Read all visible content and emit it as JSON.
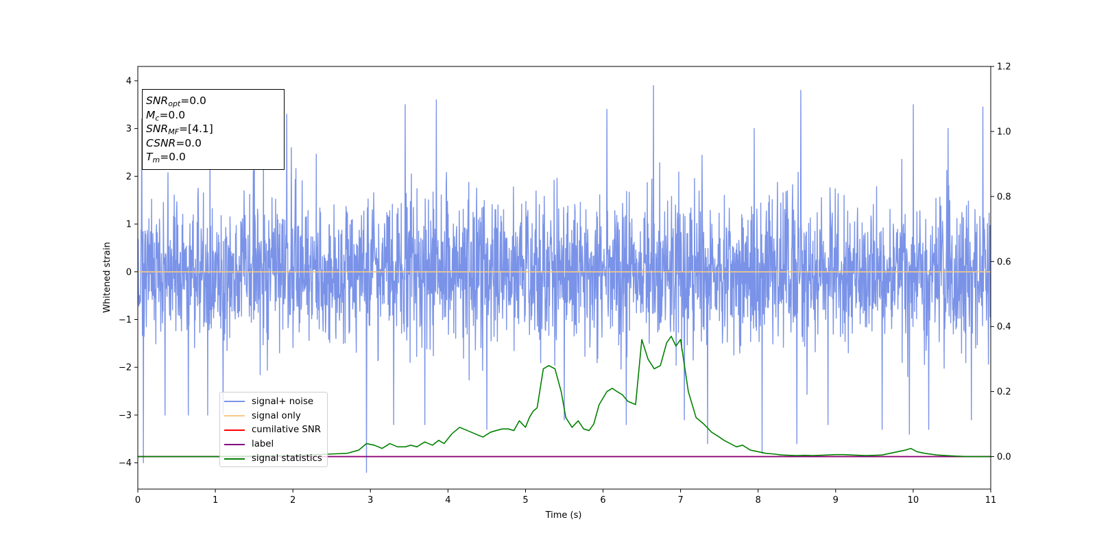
{
  "chart_data": {
    "type": "line",
    "xlabel": "Time (s)",
    "ylabel": "Whitened strain",
    "xlim": [
      0,
      11
    ],
    "ylim": [
      -4.55,
      4.3
    ],
    "ylim_right": [
      -0.1,
      1.2
    ],
    "x_ticks": [
      "0",
      "1",
      "2",
      "3",
      "4",
      "5",
      "6",
      "7",
      "8",
      "9",
      "10",
      "11"
    ],
    "x_tick_values": [
      0,
      1,
      2,
      3,
      4,
      5,
      6,
      7,
      8,
      9,
      10,
      11
    ],
    "y_ticks": [
      "4",
      "3",
      "2",
      "1",
      "0",
      "−1",
      "−2",
      "−3",
      "−4"
    ],
    "y_tick_values": [
      4,
      3,
      2,
      1,
      0,
      -1,
      -2,
      -3,
      -4
    ],
    "y_right_ticks": [
      "1.2",
      "1.0",
      "0.8",
      "0.6",
      "0.4",
      "0.2",
      "0.0"
    ],
    "y_right_tick_values": [
      1.2,
      1.0,
      0.8,
      0.6,
      0.4,
      0.2,
      0.0
    ],
    "legend_position": "lower-left",
    "grid": false,
    "series": [
      {
        "name": "signal+ noise",
        "axis": "left",
        "color": "#7a93e8",
        "style": "noise",
        "typical_range": [
          -2.1,
          2.1
        ],
        "peaks_high": [
          [
            0.05,
            3.2
          ],
          [
            1.5,
            3.8
          ],
          [
            1.92,
            3.3
          ],
          [
            3.45,
            3.5
          ],
          [
            3.85,
            3.6
          ],
          [
            5.5,
            3.2
          ],
          [
            6.05,
            3.4
          ],
          [
            6.65,
            3.9
          ],
          [
            6.3,
            3.0
          ],
          [
            7.95,
            3.0
          ],
          [
            8.55,
            3.8
          ],
          [
            8.9,
            3.2
          ],
          [
            9.6,
            3.0
          ],
          [
            10.0,
            3.5
          ],
          [
            10.45,
            3.0
          ],
          [
            10.9,
            3.45
          ]
        ],
        "peaks_low": [
          [
            0.07,
            -4.0
          ],
          [
            0.35,
            -3.0
          ],
          [
            0.65,
            -3.0
          ],
          [
            0.9,
            -3.0
          ],
          [
            1.1,
            -3.0
          ],
          [
            2.95,
            -4.2
          ],
          [
            3.3,
            -3.2
          ],
          [
            3.7,
            -3.2
          ],
          [
            4.5,
            -3.3
          ],
          [
            5.5,
            -3.1
          ],
          [
            6.3,
            -3.2
          ],
          [
            7.05,
            -3.1
          ],
          [
            7.35,
            -3.6
          ],
          [
            8.05,
            -3.8
          ],
          [
            8.5,
            -3.6
          ],
          [
            8.9,
            -3.2
          ],
          [
            9.6,
            -3.3
          ],
          [
            9.95,
            -3.4
          ],
          [
            10.2,
            -3.3
          ],
          [
            10.75,
            -3.1
          ]
        ]
      },
      {
        "name": "signal only",
        "axis": "left",
        "color": "#f5c987",
        "x": [
          0,
          11
        ],
        "y": [
          0.0,
          0.0
        ]
      },
      {
        "name": "cumilative SNR",
        "axis": "right",
        "color": "#ff0000",
        "x": [
          0,
          11
        ],
        "y": [
          0.0,
          0.0
        ]
      },
      {
        "name": "label",
        "axis": "right",
        "color": "#800080",
        "x": [
          0,
          11
        ],
        "y": [
          0.0,
          0.0
        ]
      },
      {
        "name": "signal statistics",
        "axis": "right",
        "color": "#008000",
        "x": [
          0,
          1,
          2,
          2.5,
          2.7,
          2.85,
          2.95,
          3.05,
          3.15,
          3.25,
          3.35,
          3.45,
          3.52,
          3.6,
          3.7,
          3.8,
          3.88,
          3.95,
          4.05,
          4.15,
          4.25,
          4.35,
          4.45,
          4.55,
          4.62,
          4.7,
          4.78,
          4.85,
          4.92,
          5.0,
          5.05,
          5.1,
          5.15,
          5.23,
          5.3,
          5.38,
          5.46,
          5.52,
          5.6,
          5.68,
          5.75,
          5.82,
          5.88,
          5.95,
          6.05,
          6.12,
          6.18,
          6.25,
          6.32,
          6.42,
          6.5,
          6.58,
          6.66,
          6.74,
          6.82,
          6.88,
          6.94,
          7.0,
          7.1,
          7.2,
          7.3,
          7.4,
          7.5,
          7.56,
          7.64,
          7.72,
          7.8,
          7.9,
          8.0,
          8.1,
          8.2,
          8.3,
          8.4,
          8.5,
          8.6,
          8.7,
          8.8,
          8.9,
          9.0,
          9.1,
          9.2,
          9.3,
          9.4,
          9.5,
          9.6,
          9.7,
          9.8,
          9.9,
          9.97,
          10.05,
          10.15,
          10.3,
          10.5,
          10.7,
          11.0
        ],
        "y": [
          0.0,
          0.0,
          0.003,
          0.008,
          0.01,
          0.02,
          0.04,
          0.035,
          0.025,
          0.04,
          0.03,
          0.03,
          0.035,
          0.03,
          0.045,
          0.035,
          0.05,
          0.04,
          0.07,
          0.09,
          0.08,
          0.07,
          0.06,
          0.075,
          0.08,
          0.085,
          0.085,
          0.08,
          0.11,
          0.09,
          0.12,
          0.14,
          0.15,
          0.27,
          0.28,
          0.27,
          0.2,
          0.12,
          0.09,
          0.11,
          0.085,
          0.08,
          0.1,
          0.16,
          0.2,
          0.21,
          0.2,
          0.19,
          0.17,
          0.16,
          0.36,
          0.3,
          0.27,
          0.28,
          0.35,
          0.37,
          0.34,
          0.36,
          0.2,
          0.12,
          0.1,
          0.075,
          0.06,
          0.05,
          0.04,
          0.03,
          0.035,
          0.02,
          0.015,
          0.01,
          0.008,
          0.005,
          0.004,
          0.003,
          0.004,
          0.003,
          0.004,
          0.005,
          0.006,
          0.006,
          0.005,
          0.004,
          0.003,
          0.004,
          0.005,
          0.01,
          0.015,
          0.02,
          0.025,
          0.015,
          0.01,
          0.005,
          0.002,
          0.0,
          0.0
        ]
      }
    ]
  },
  "info_box": {
    "snr_opt": {
      "base": "SNR",
      "sub": "opt",
      "value": "=0.0"
    },
    "mc": {
      "base": "M",
      "sub": "c",
      "value": "=0.0"
    },
    "snr_mf": {
      "base": "SNR",
      "sub": "MF",
      "value": "=[4.1]"
    },
    "csnr": {
      "base": "CSNR",
      "value": "=0.0"
    },
    "tm": {
      "base": "T",
      "sub": "m",
      "value": "=0.0"
    }
  }
}
